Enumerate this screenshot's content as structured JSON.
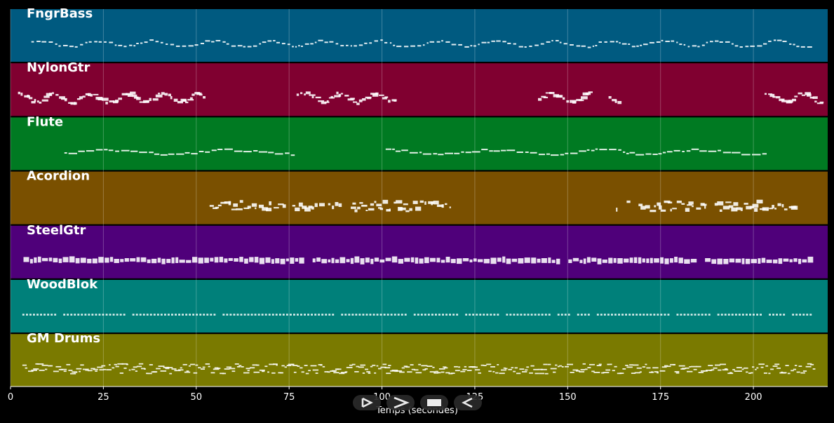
{
  "tracks": [
    {
      "name": "FngrBass",
      "color": "#005a80",
      "style": "bass",
      "segments": [
        [
          5.6,
          216
        ]
      ]
    },
    {
      "name": "NylonGtr",
      "color": "#800030",
      "style": "guitar",
      "segments": [
        [
          2,
          52
        ],
        [
          77,
          103.5
        ],
        [
          142,
          156
        ],
        [
          161,
          164
        ],
        [
          203,
          218
        ]
      ]
    },
    {
      "name": "Flute",
      "color": "#007a22",
      "style": "flute",
      "segments": [
        [
          14.5,
          77
        ],
        [
          101,
          203
        ]
      ]
    },
    {
      "name": "Acordion",
      "color": "#7a5000",
      "style": "accordion",
      "segments": [
        [
          53.6,
          119
        ],
        [
          163,
          213.5
        ]
      ]
    },
    {
      "name": "SteelGtr",
      "color": "#4f007a",
      "style": "steel",
      "segments": [
        [
          3.5,
          216
        ]
      ]
    },
    {
      "name": "WoodBlok",
      "color": "#00807a",
      "style": "wood",
      "segments": [
        [
          3.2,
          216
        ]
      ]
    },
    {
      "name": "GM Drums",
      "color": "#7a7a00",
      "style": "drums",
      "segments": [
        [
          3.2,
          216
        ]
      ]
    }
  ],
  "axis": {
    "label": "Temps (secondes)",
    "min": 0,
    "max": 220,
    "ticks": [
      "0",
      "25",
      "50",
      "75",
      "100",
      "125",
      "150",
      "175",
      "200"
    ],
    "tick_values": [
      0,
      25,
      50,
      75,
      100,
      125,
      150,
      175,
      200
    ]
  },
  "controls": [
    {
      "name": "play-button",
      "icon": "play-icon"
    },
    {
      "name": "forward-button",
      "icon": "forward-icon"
    },
    {
      "name": "stop-button",
      "icon": "stop-icon"
    },
    {
      "name": "rewind-button",
      "icon": "rewind-icon"
    }
  ],
  "colors": {
    "background": "#000000",
    "note": "#ffffff",
    "grid": "#ffffff"
  }
}
